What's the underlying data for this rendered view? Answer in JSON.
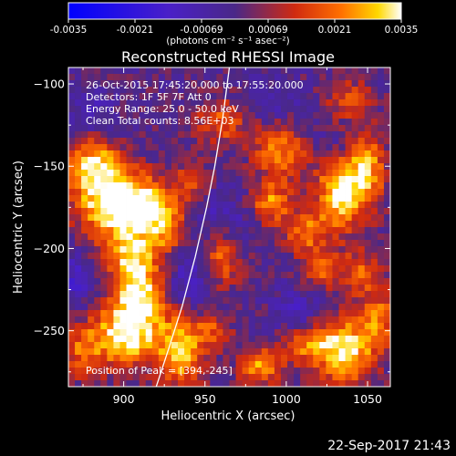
{
  "colorbar": {
    "ticks": [
      "-0.0035",
      "-0.0021",
      "-0.00069",
      "0.00069",
      "0.0021",
      "0.0035"
    ],
    "unit_label": "(photons cm⁻² s⁻¹ asec⁻²)",
    "range": [
      -0.0035,
      0.0035
    ]
  },
  "chart_data": {
    "type": "heatmap",
    "title": "Reconstructed RHESSI Image",
    "xlabel": "Heliocentric X (arcsec)",
    "ylabel": "Heliocentric Y (arcsec)",
    "xlim": [
      866,
      1064
    ],
    "ylim": [
      -284,
      -90
    ],
    "xticks": [
      900,
      950,
      1000,
      1050
    ],
    "yticks": [
      -100,
      -150,
      -200,
      -250
    ],
    "annotations": [
      "26-Oct-2015 17:45:20.000 to 17:55:20.000",
      "Detectors: 1F 5F 7F  Att 0",
      "Energy Range: 25.0 - 50.0 keV",
      "Clean     Total counts: 8.56E+03"
    ],
    "peak_label": "Position of Peak = [394,-245]",
    "blobs": [
      {
        "x": 893,
        "y": -172,
        "peak": 0.0035,
        "sx": 16,
        "sy": 16
      },
      {
        "x": 880,
        "y": -148,
        "peak": 0.0025,
        "sx": 12,
        "sy": 12
      },
      {
        "x": 916,
        "y": -174,
        "peak": 0.0024,
        "sx": 14,
        "sy": 11
      },
      {
        "x": 927,
        "y": -190,
        "peak": 0.0018,
        "sx": 10,
        "sy": 10
      },
      {
        "x": 905,
        "y": -205,
        "peak": 0.0025,
        "sx": 11,
        "sy": 12
      },
      {
        "x": 910,
        "y": -228,
        "peak": 0.0028,
        "sx": 11,
        "sy": 13
      },
      {
        "x": 902,
        "y": -252,
        "peak": 0.0035,
        "sx": 14,
        "sy": 14
      },
      {
        "x": 935,
        "y": -262,
        "peak": 0.003,
        "sx": 10,
        "sy": 16
      },
      {
        "x": 874,
        "y": -262,
        "peak": 0.0018,
        "sx": 10,
        "sy": 12
      },
      {
        "x": 960,
        "y": -123,
        "peak": 0.0018,
        "sx": 12,
        "sy": 10
      },
      {
        "x": 942,
        "y": -158,
        "peak": 0.0016,
        "sx": 7,
        "sy": 8
      },
      {
        "x": 960,
        "y": -204,
        "peak": 0.0023,
        "sx": 9,
        "sy": 13
      },
      {
        "x": 997,
        "y": -142,
        "peak": 0.0023,
        "sx": 12,
        "sy": 11
      },
      {
        "x": 990,
        "y": -172,
        "peak": 0.0024,
        "sx": 9,
        "sy": 9
      },
      {
        "x": 1012,
        "y": -190,
        "peak": 0.002,
        "sx": 10,
        "sy": 10
      },
      {
        "x": 1038,
        "y": -110,
        "peak": 0.0015,
        "sx": 10,
        "sy": 10
      },
      {
        "x": 1034,
        "y": -165,
        "peak": 0.0034,
        "sx": 11,
        "sy": 16
      },
      {
        "x": 1050,
        "y": -150,
        "peak": 0.0024,
        "sx": 8,
        "sy": 16
      },
      {
        "x": 1045,
        "y": -215,
        "peak": 0.0018,
        "sx": 9,
        "sy": 10
      },
      {
        "x": 1022,
        "y": -212,
        "peak": 0.0018,
        "sx": 8,
        "sy": 8
      },
      {
        "x": 1036,
        "y": -262,
        "peak": 0.0035,
        "sx": 13,
        "sy": 14
      },
      {
        "x": 1012,
        "y": -258,
        "peak": 0.002,
        "sx": 9,
        "sy": 8
      },
      {
        "x": 985,
        "y": -272,
        "peak": 0.0025,
        "sx": 10,
        "sy": 8
      },
      {
        "x": 1058,
        "y": -242,
        "peak": 0.002,
        "sx": 8,
        "sy": 12
      },
      {
        "x": 955,
        "y": -250,
        "peak": 0.0016,
        "sx": 8,
        "sy": 8
      },
      {
        "x": 960,
        "y": -185,
        "peak": -0.0012,
        "sx": 14,
        "sy": 14
      },
      {
        "x": 940,
        "y": -220,
        "peak": -0.0012,
        "sx": 10,
        "sy": 14
      },
      {
        "x": 880,
        "y": -120,
        "peak": -0.001,
        "sx": 10,
        "sy": 10
      },
      {
        "x": 870,
        "y": -220,
        "peak": -0.0012,
        "sx": 8,
        "sy": 12
      },
      {
        "x": 1030,
        "y": -138,
        "peak": -0.0008,
        "sx": 12,
        "sy": 10
      },
      {
        "x": 1008,
        "y": -238,
        "peak": -0.001,
        "sx": 10,
        "sy": 10
      },
      {
        "x": 990,
        "y": -110,
        "peak": -0.0008,
        "sx": 12,
        "sy": 8
      }
    ],
    "limb_curve": [
      [
        920,
        -284
      ],
      [
        928,
        -260
      ],
      [
        936,
        -235
      ],
      [
        944,
        -205
      ],
      [
        951,
        -175
      ],
      [
        956,
        -150
      ],
      [
        961,
        -120
      ],
      [
        965,
        -90
      ]
    ]
  },
  "timestamp": "22-Sep-2017 21:43"
}
